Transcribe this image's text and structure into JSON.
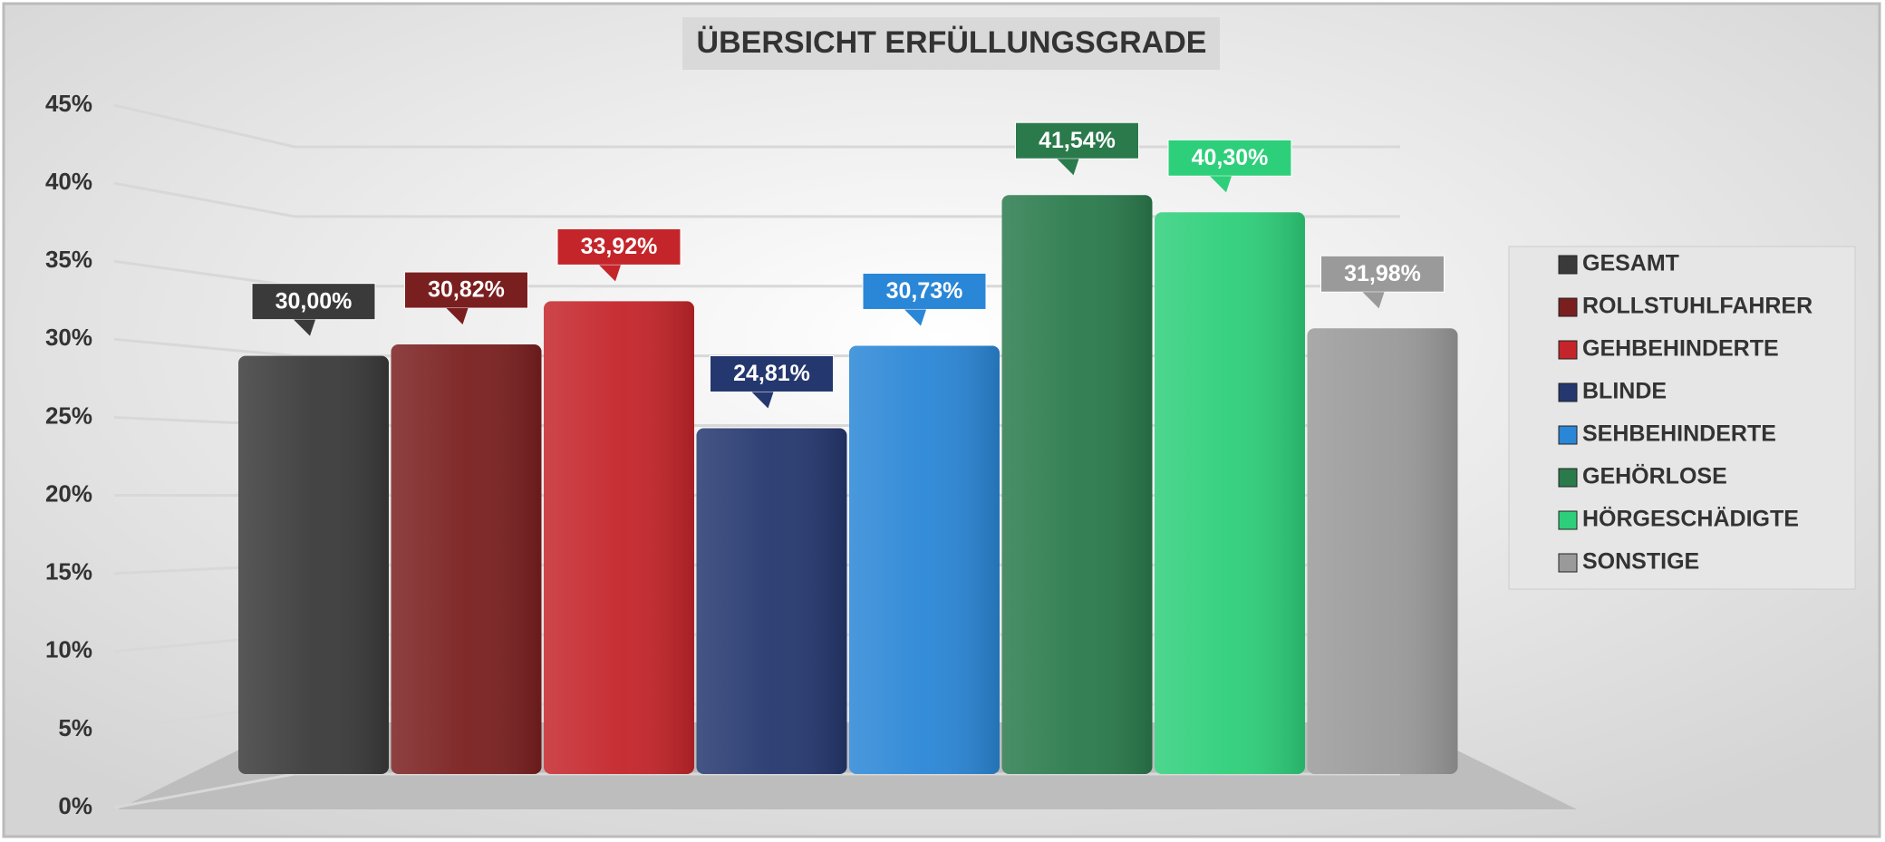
{
  "chart_data": {
    "type": "bar",
    "title": "ÜBERSICHT ERFÜLLUNGSGRADE",
    "ylim": [
      0,
      45
    ],
    "yticks": [
      {
        "value": 0,
        "label": "0%"
      },
      {
        "value": 5,
        "label": "5%"
      },
      {
        "value": 10,
        "label": "10%"
      },
      {
        "value": 15,
        "label": "15%"
      },
      {
        "value": 20,
        "label": "20%"
      },
      {
        "value": 25,
        "label": "25%"
      },
      {
        "value": 30,
        "label": "30%"
      },
      {
        "value": 35,
        "label": "35%"
      },
      {
        "value": 40,
        "label": "40%"
      },
      {
        "value": 45,
        "label": "45%"
      }
    ],
    "grid": true,
    "legend": "right",
    "series": [
      {
        "name": "GESAMT",
        "color": "#3a3a3a",
        "values": [
          30.0
        ],
        "value_labels": [
          "30,00%"
        ]
      },
      {
        "name": "ROLLSTUHLFAHRER",
        "color": "#7a1f1f",
        "values": [
          30.82
        ],
        "value_labels": [
          "30,82%"
        ]
      },
      {
        "name": "GEHBEHINDERTE",
        "color": "#c4252a",
        "values": [
          33.92
        ],
        "value_labels": [
          "33,92%"
        ]
      },
      {
        "name": "BLINDE",
        "color": "#24376e",
        "values": [
          24.81
        ],
        "value_labels": [
          "24,81%"
        ]
      },
      {
        "name": "SEHBEHINDERTE",
        "color": "#2a86d6",
        "values": [
          30.73
        ],
        "value_labels": [
          "30,73%"
        ]
      },
      {
        "name": "GEHÖRLOSE",
        "color": "#2a7a4c",
        "values": [
          41.54
        ],
        "value_labels": [
          "41,54%"
        ]
      },
      {
        "name": "HÖRGESCHÄDIGTE",
        "color": "#2ecf7a",
        "values": [
          40.3
        ],
        "value_labels": [
          "40,30%"
        ]
      },
      {
        "name": "SONSTIGE",
        "color": "#9a9a9a",
        "values": [
          31.98
        ],
        "value_labels": [
          "31,98%"
        ]
      }
    ]
  }
}
